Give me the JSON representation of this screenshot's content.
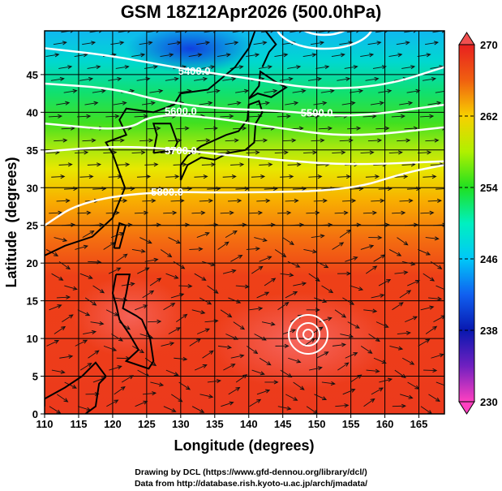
{
  "title": "GSM 18Z12Apr2026 (500.0hPa)",
  "chart_data": {
    "type": "contour-map",
    "title": "GSM 18Z12Apr2026 (500.0hPa)",
    "xlabel": "Longitude (degrees)",
    "ylabel": "Latitude  (degrees)",
    "xlim": [
      110,
      168.75
    ],
    "ylim": [
      0,
      50.8
    ],
    "xticks": [
      110,
      115,
      120,
      125,
      130,
      135,
      140,
      145,
      150,
      155,
      160,
      165
    ],
    "yticks": [
      0,
      5,
      10,
      15,
      20,
      25,
      30,
      35,
      40,
      45
    ],
    "colorbar": {
      "min": 230,
      "max": 270,
      "ticks": [
        230,
        238,
        246,
        254,
        262,
        270
      ],
      "colors": [
        "#ff40c0",
        "#9020c0",
        "#0818b0",
        "#1060f0",
        "#00d8f8",
        "#00f0c0",
        "#20e020",
        "#90ee10",
        "#f0f000",
        "#f8b000",
        "#f06010",
        "#e82020"
      ]
    },
    "height_contours": [
      {
        "label": "5400.0",
        "label_at": [
          132,
          45.5
        ],
        "points": [
          [
            110,
            48.5
          ],
          [
            120,
            47.5
          ],
          [
            130,
            45.8
          ],
          [
            140,
            44.5
          ],
          [
            150,
            43
          ],
          [
            160,
            43.5
          ],
          [
            168.75,
            46
          ]
        ]
      },
      {
        "label": "5500.0",
        "label_at": [
          150,
          40
        ],
        "points": [
          [
            110,
            43.8
          ],
          [
            120,
            43.2
          ],
          [
            127,
            41.5
          ],
          [
            135,
            40.5
          ],
          [
            145,
            40.2
          ],
          [
            155,
            39.3
          ],
          [
            168.75,
            41
          ]
        ]
      },
      {
        "label": "5600.0",
        "label_at": [
          130,
          40.2
        ],
        "points": [
          [
            110,
            38.5
          ],
          [
            122,
            37.5
          ],
          [
            126,
            39.8
          ],
          [
            135,
            39.3
          ],
          [
            145,
            37.8
          ],
          [
            155,
            36.7
          ],
          [
            168.75,
            38
          ]
        ]
      },
      {
        "label": "5700.0",
        "label_at": [
          130,
          35
        ],
        "points": [
          [
            110,
            34.8
          ],
          [
            120,
            35.5
          ],
          [
            128,
            35.2
          ],
          [
            135,
            34.5
          ],
          [
            145,
            33.6
          ],
          [
            155,
            33
          ],
          [
            168.75,
            33.5
          ]
        ]
      },
      {
        "label": "5800.0",
        "label_at": [
          128,
          29.5
        ],
        "points": [
          [
            110,
            25
          ],
          [
            115,
            28
          ],
          [
            125,
            29.5
          ],
          [
            140,
            29.3
          ],
          [
            155,
            29.7
          ],
          [
            163,
            32
          ],
          [
            168.75,
            33
          ]
        ]
      }
    ],
    "grid": true
  },
  "credits": {
    "line1": "Drawing by DCL (https://www.gfd-dennou.org/library/dcl/)",
    "line2": "Data from http://database.rish.kyoto-u.ac.jp/arch/jmadata/"
  }
}
